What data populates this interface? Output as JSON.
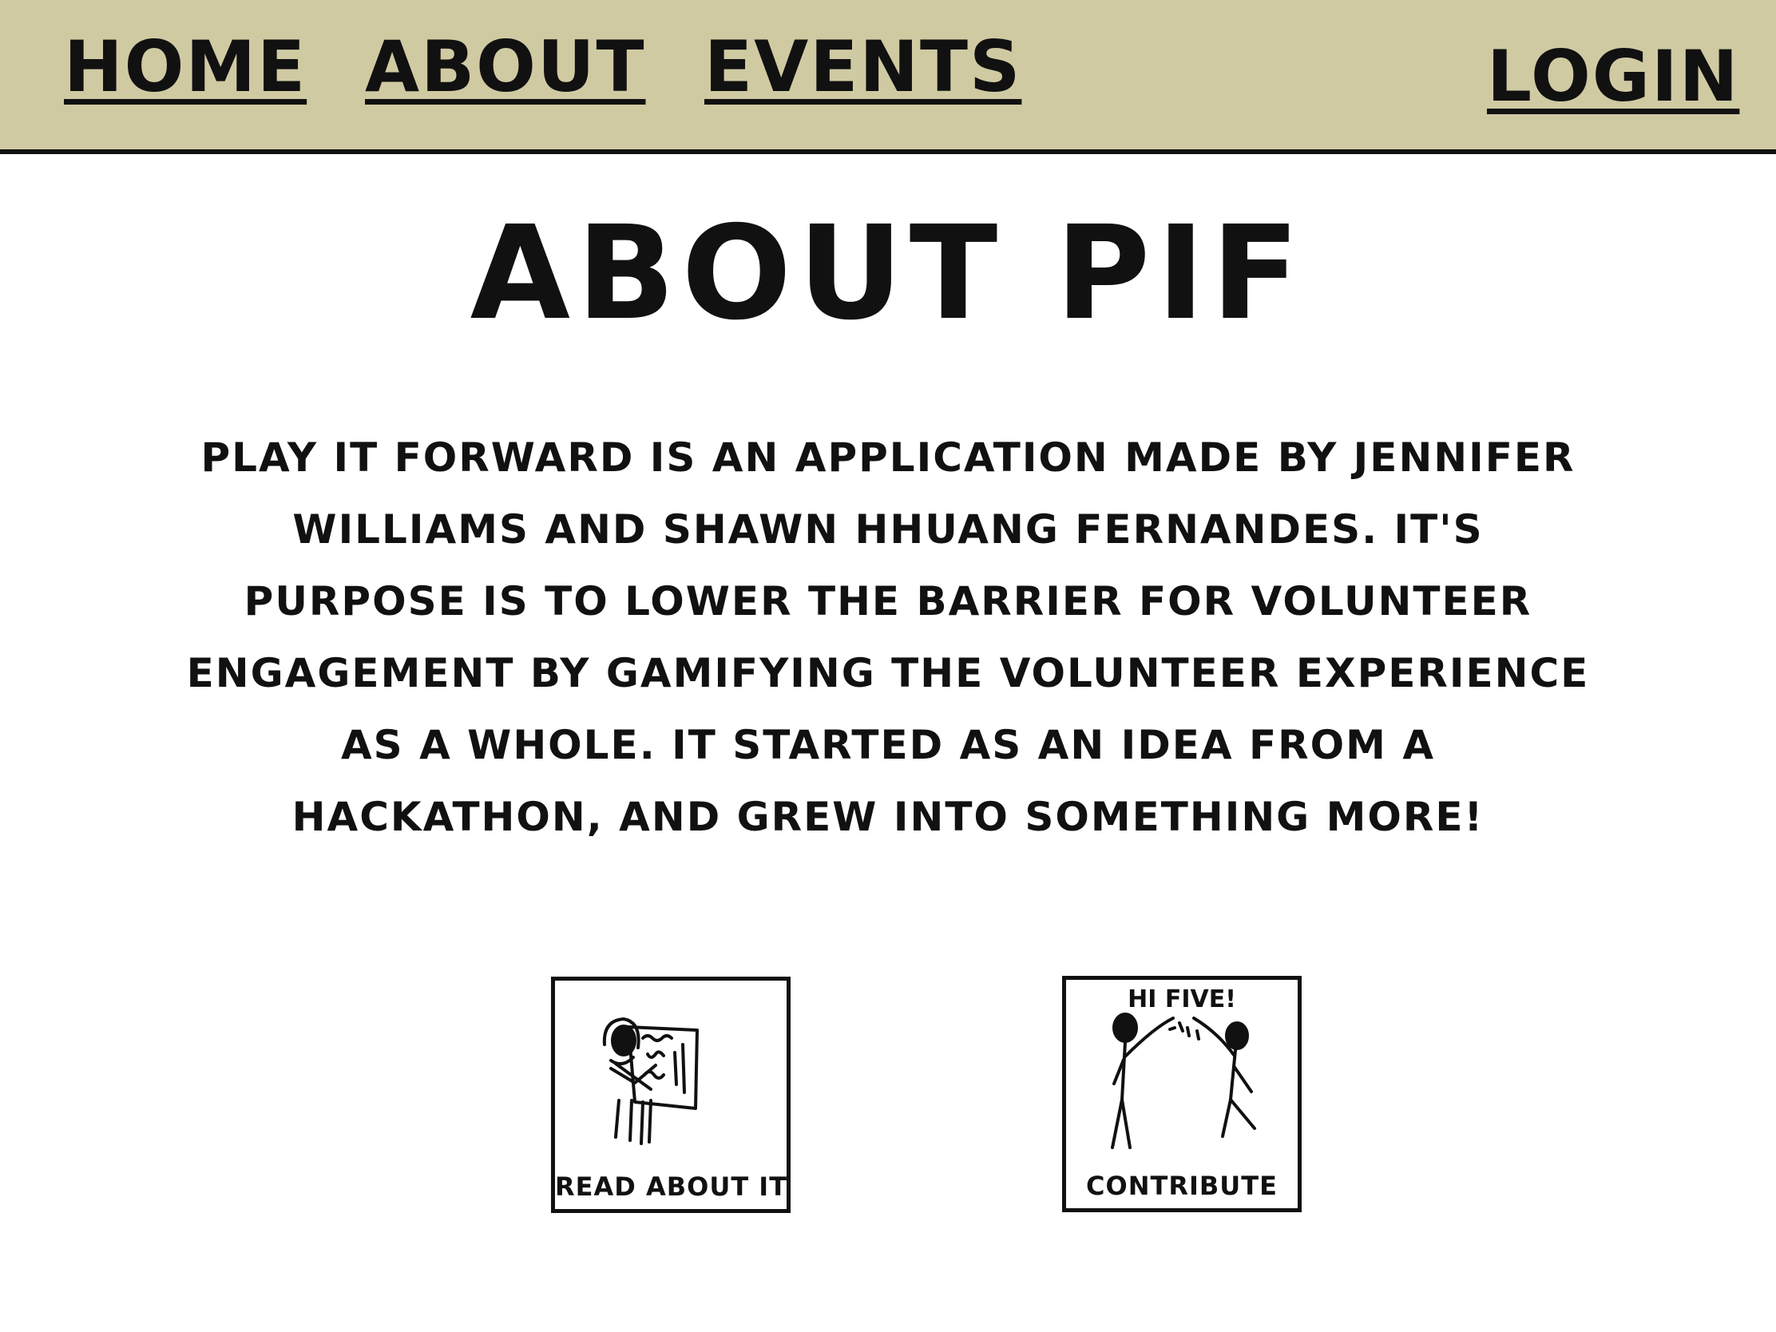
{
  "nav": {
    "home": "HOME",
    "about": "ABOUT",
    "events": "EVENTS",
    "login": "LOGIN"
  },
  "main": {
    "title": "ABOUT PIF",
    "description": "PLAY IT FORWARD IS AN APPLICATION MADE BY JENNIFER WILLIAMS AND SHAWN HHUANG FERNANDES. IT'S PURPOSE IS TO LOWER THE BARRIER FOR VOLUNTEER ENGAGEMENT BY GAMIFYING THE VOLUNTEER EXPERIENCE AS A WHOLE. IT STARTED AS AN IDEA FROM A HACKATHON, AND GREW INTO SOMETHING MORE!"
  },
  "tiles": {
    "read": {
      "label": "READ ABOUT IT",
      "icon": "newspaper-reader-icon"
    },
    "contribute": {
      "label": "CONTRIBUTE",
      "caption": "HI FIVE!",
      "icon": "high-five-icon"
    }
  },
  "colors": {
    "navbar_bg": "#d0caa3",
    "ink": "#111111"
  }
}
